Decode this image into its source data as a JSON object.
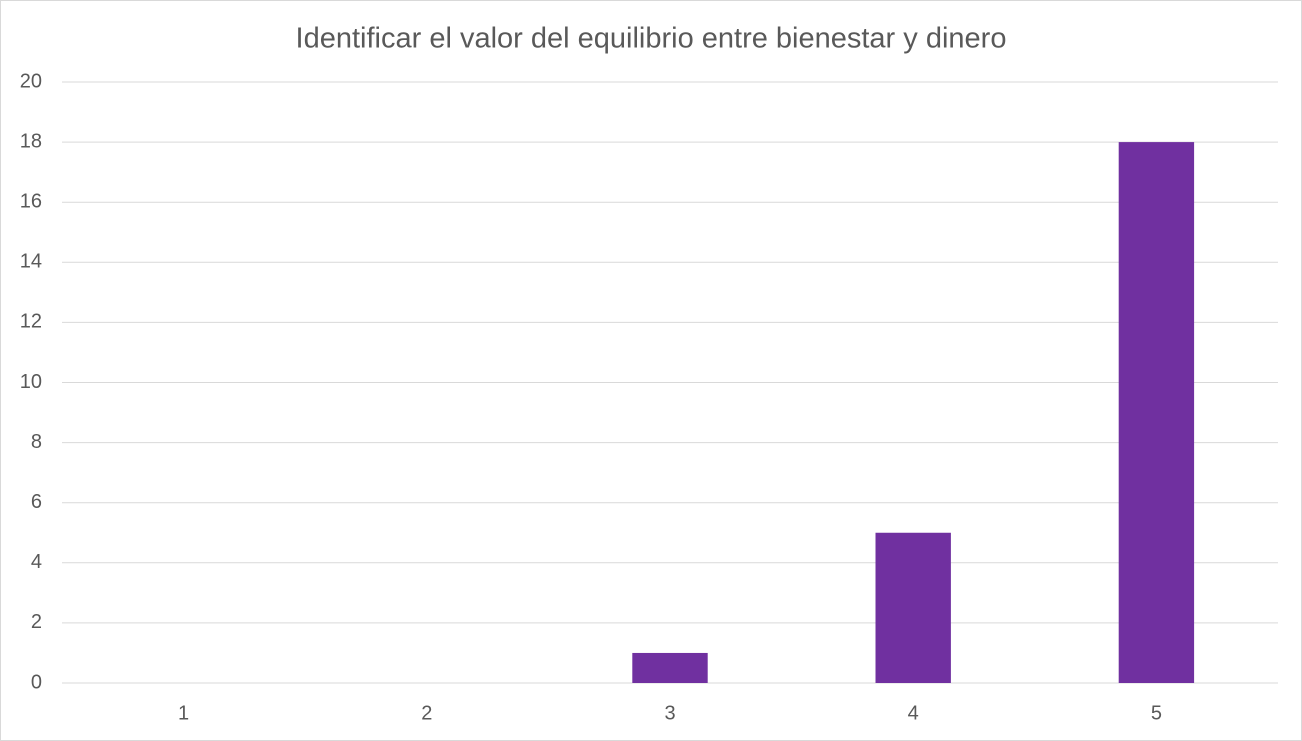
{
  "chart_data": {
    "type": "bar",
    "title": "Identificar el valor del equilibrio entre bienestar y dinero",
    "categories": [
      "1",
      "2",
      "3",
      "4",
      "5"
    ],
    "values": [
      0,
      0,
      1,
      5,
      18
    ],
    "color": "#7030a0",
    "ylim": [
      0,
      20
    ],
    "yticks": [
      0,
      2,
      4,
      6,
      8,
      10,
      12,
      14,
      16,
      18,
      20
    ],
    "grid": true
  }
}
